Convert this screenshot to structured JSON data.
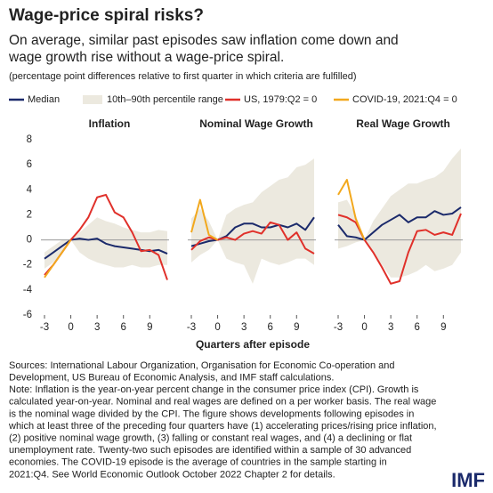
{
  "header": {
    "title": "Wage-price spiral risks?",
    "subtitle": [
      "On average, similar past episodes saw inflation come down and",
      "wage growth rise without a wage-price spiral."
    ],
    "note": "(percentage point differences relative to first quarter in which criteria are fulfilled)"
  },
  "chart_data": [
    {
      "type": "line",
      "title": "Inflation",
      "x": [
        -3,
        -2,
        -1,
        0,
        1,
        2,
        3,
        4,
        5,
        6,
        7,
        8,
        9,
        10,
        11
      ],
      "xlim": [
        -3,
        11
      ],
      "xticks": [
        -3,
        0,
        3,
        6,
        9
      ],
      "ylim": [
        -6,
        8
      ],
      "yticks": [
        8,
        6,
        4,
        2,
        0,
        -2,
        -4,
        -6
      ],
      "series": [
        {
          "name": "Median",
          "color": "#1b2a6b",
          "values": [
            -1.5,
            -1.0,
            -0.5,
            0,
            0.1,
            0,
            0.1,
            -0.3,
            -0.5,
            -0.6,
            -0.7,
            -0.8,
            -0.9,
            -0.8,
            -1.1
          ]
        },
        {
          "name": "10th–90th percentile range",
          "color": "#ece9df",
          "upper": [
            -1.0,
            -0.5,
            0,
            0,
            0.6,
            1.2,
            1.8,
            1.5,
            1.3,
            1.0,
            0.8,
            0.6,
            0.6,
            0.8,
            0.7
          ],
          "lower": [
            -2.3,
            -1.8,
            -1.0,
            0,
            -1.0,
            -1.5,
            -1.8,
            -2.0,
            -2.2,
            -2.2,
            -2.0,
            -2.2,
            -2.2,
            -2.0,
            -2.0
          ]
        },
        {
          "name": "US, 1979:Q2 = 0",
          "color": "#e0302a",
          "values": [
            -2.8,
            -2.0,
            -1.0,
            0,
            0.8,
            1.8,
            3.4,
            3.6,
            2.2,
            1.8,
            0.6,
            -0.9,
            -0.8,
            -1.2,
            -3.2
          ]
        },
        {
          "name": "COVID-19, 2021:Q4 = 0",
          "color": "#f2a81d",
          "values": [
            -3.0,
            -2.0,
            -1.0,
            0,
            null,
            null,
            null,
            null,
            null,
            null,
            null,
            null,
            null,
            null,
            null
          ]
        }
      ]
    },
    {
      "type": "line",
      "title": "Nominal Wage Growth",
      "xlabel": "Quarters after episode",
      "x": [
        -3,
        -2,
        -1,
        0,
        1,
        2,
        3,
        4,
        5,
        6,
        7,
        8,
        9,
        10,
        11
      ],
      "xlim": [
        -3,
        11
      ],
      "xticks": [
        -3,
        0,
        3,
        6,
        9
      ],
      "ylim": [
        -6,
        8
      ],
      "series": [
        {
          "name": "Median",
          "color": "#1b2a6b",
          "values": [
            -0.5,
            -0.3,
            -0.1,
            0,
            0.3,
            1.0,
            1.3,
            1.3,
            1.0,
            1.0,
            1.2,
            1.0,
            1.3,
            0.8,
            1.8
          ]
        },
        {
          "name": "10th–90th percentile range",
          "color": "#ece9df",
          "upper": [
            1.7,
            2.5,
            1.5,
            0,
            2.0,
            2.5,
            2.8,
            3.0,
            3.8,
            4.3,
            4.8,
            5.0,
            5.8,
            6.0,
            6.5
          ],
          "lower": [
            -1.8,
            -1.2,
            -0.8,
            0,
            -1.5,
            -1.8,
            -2.0,
            -3.5,
            -1.5,
            -1.8,
            -2.0,
            -1.8,
            -1.5,
            -1.5,
            -2.0
          ]
        },
        {
          "name": "US, 1979:Q2 = 0",
          "color": "#e0302a",
          "values": [
            -0.8,
            -0.1,
            0.2,
            0,
            0.2,
            0,
            0.5,
            0.7,
            0.5,
            1.4,
            1.2,
            0,
            0.6,
            -0.7,
            -1.1
          ]
        },
        {
          "name": "COVID-19, 2021:Q4 = 0",
          "color": "#f2a81d",
          "values": [
            0.6,
            3.2,
            0.4,
            0,
            null,
            null,
            null,
            null,
            null,
            null,
            null,
            null,
            null,
            null,
            null
          ]
        }
      ]
    },
    {
      "type": "line",
      "title": "Real Wage Growth",
      "x": [
        -3,
        -2,
        -1,
        0,
        1,
        2,
        3,
        4,
        5,
        6,
        7,
        8,
        9,
        10,
        11
      ],
      "xlim": [
        -3,
        11
      ],
      "xticks": [
        -3,
        0,
        3,
        6,
        9
      ],
      "ylim": [
        -6,
        8
      ],
      "series": [
        {
          "name": "Median",
          "color": "#1b2a6b",
          "values": [
            1.2,
            0.3,
            0.2,
            0,
            0.6,
            1.2,
            1.6,
            2.0,
            1.4,
            1.8,
            1.8,
            2.3,
            2.0,
            2.1,
            2.6
          ]
        },
        {
          "name": "10th–90th percentile range",
          "color": "#ece9df",
          "upper": [
            3.0,
            3.2,
            2.0,
            0,
            1.5,
            2.5,
            3.5,
            4.0,
            4.5,
            4.5,
            4.8,
            5.0,
            5.5,
            6.5,
            7.3
          ],
          "lower": [
            -0.7,
            -0.5,
            -0.2,
            0,
            -1.0,
            -2.0,
            -3.0,
            -3.0,
            -2.8,
            -2.5,
            -2.0,
            -2.5,
            -2.3,
            -2.0,
            -1.0
          ]
        },
        {
          "name": "US, 1979:Q2 = 0",
          "color": "#e0302a",
          "values": [
            2.0,
            1.8,
            1.4,
            0,
            -1.0,
            -2.2,
            -3.5,
            -3.3,
            -1.0,
            0.7,
            0.8,
            0.4,
            0.6,
            0.4,
            2.1
          ]
        },
        {
          "name": "COVID-19, 2021:Q4 = 0",
          "color": "#f2a81d",
          "values": [
            3.6,
            4.8,
            1.7,
            0,
            null,
            null,
            null,
            null,
            null,
            null,
            null,
            null,
            null,
            null,
            null
          ]
        }
      ]
    }
  ],
  "footer": {
    "lines": [
      "Sources: International Labour Organization, Organisation for Economic Co-operation and",
      "Development, US Bureau of Economic Analysis, and IMF staff calculations.",
      "Note: Inflation is the year-on-year percent change in the consumer price index (CPI). Growth is",
      "calculated year-on-year. Nominal and real wages are defined on a per worker basis. The real wage",
      "is the nominal wage divided by the CPI. The figure shows developments following episodes in",
      "which at least three of the preceding four quarters have (1) accelerating prices/rising price inflation,",
      "(2) positive nominal wage growth, (3) falling or constant real wages, and (4) a declining or flat",
      "unemployment rate. Twenty-two such episodes are identified within a sample of 30 advanced",
      "economies. The COVID-19 episode is the average of countries in the sample starting in",
      "2021:Q4. See World Economic Outlook October 2022 Chapter 2 for details."
    ],
    "logo": "IMF"
  }
}
